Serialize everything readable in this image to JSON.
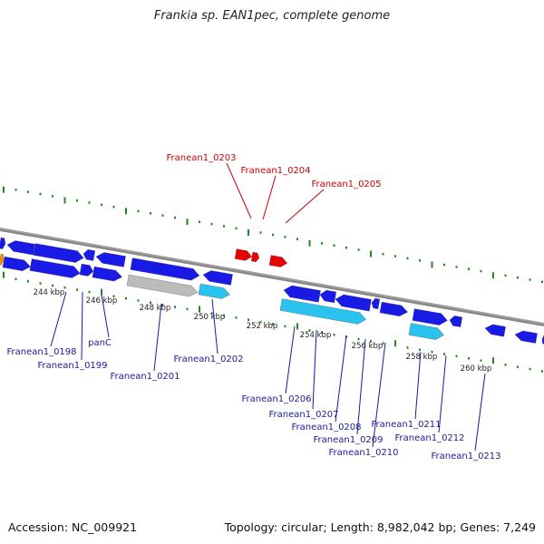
{
  "header": {
    "title": "Frankia sp. EAN1pec, complete genome"
  },
  "footer": {
    "accession": "Accession: NC_009921",
    "summary": "Topology: circular; Length: 8,982,042 bp; Genes: 7,249"
  },
  "colors": {
    "backbone": "#888888",
    "ticks": "#1e8a1e",
    "highlight": "#e80000",
    "gene_blue": "#1a1ae6",
    "gene_cyan": "#29c3ee",
    "gene_gray": "#bbbbbb",
    "gene_orange": "#f08c00",
    "label_blue": "#1a1a99",
    "label_red": "#cc0000"
  },
  "scale_labels": [
    "244 kbp",
    "246 kbp",
    "248 kbp",
    "250 kbp",
    "252 kbp",
    "254 kbp",
    "256 kbp",
    "258 kbp",
    "260 kbp"
  ],
  "highlighted_genes": [
    "Franean1_0203",
    "Franean1_0204",
    "Franean1_0205"
  ],
  "gene_labels": [
    "Franean1_0198",
    "Franean1_0199",
    "panC",
    "Franean1_0201",
    "Franean1_0202",
    "Franean1_0206",
    "Franean1_0207",
    "Franean1_0208",
    "Franean1_0209",
    "Franean1_0210",
    "Franean1_0211",
    "Franean1_0212",
    "Franean1_0213"
  ]
}
